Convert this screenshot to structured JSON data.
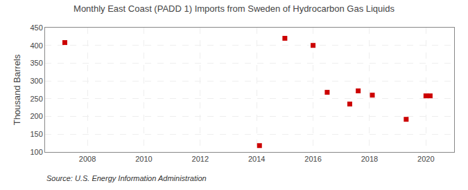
{
  "chart_data": {
    "type": "scatter",
    "title": "Monthly East Coast (PADD 1) Imports from Sweden of Hydrocarbon Gas Liquids",
    "ylabel": "Thousand Barrels",
    "annotations": [
      "Source: U.S. Energy Information Administration"
    ],
    "x": [
      2007.2,
      2014.1,
      2015.0,
      2016.0,
      2016.5,
      2017.3,
      2017.6,
      2018.1,
      2019.3,
      2020.0,
      2020.15
    ],
    "values": [
      408,
      118,
      420,
      400,
      268,
      235,
      272,
      260,
      192,
      258,
      258
    ],
    "color": "#cc0000",
    "marker": "square",
    "xlim": [
      2006.5,
      2021.0
    ],
    "ylim": [
      100,
      450
    ],
    "xticks": [
      2008,
      2010,
      2012,
      2014,
      2016,
      2018,
      2020
    ],
    "yticks": [
      100,
      150,
      200,
      250,
      300,
      350,
      400,
      450
    ],
    "grid": true
  }
}
